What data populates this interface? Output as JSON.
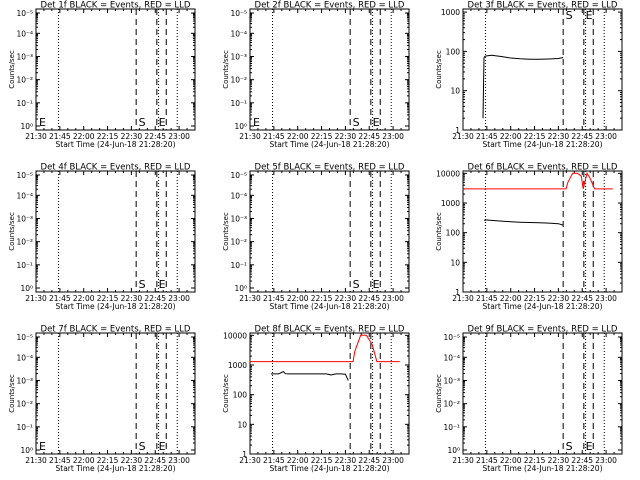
{
  "charts": [
    {
      "type": "line",
      "title": "Det 1f BLACK = Events, RED = LLD",
      "xlabel": "Start Time (24-Jun-18 21:28:20)",
      "ylabel": "Counts/sec",
      "xlim": [
        21.5,
        23.1667
      ],
      "xticks": [
        "21:30",
        "21:45",
        "22:00",
        "22:15",
        "22:30",
        "22:45",
        "23:00"
      ],
      "yscale": "log",
      "ylim": [
        1,
        10000
      ],
      "yticks": [
        "10⁰",
        "10⁻¹",
        "10⁻²",
        "10⁻³",
        "10⁻⁴",
        "10⁻⁵"
      ],
      "dotted_lines": [
        21.7361,
        22.7847,
        22.9806
      ],
      "dashed_lines": [
        22.55,
        22.7667,
        22.8653
      ],
      "markers": [
        {
          "label": "E",
          "x": 21.515
        },
        {
          "label": "S",
          "x": 22.56
        },
        {
          "label": "E",
          "x": 22.77
        }
      ],
      "series": [],
      "grid": false
    },
    {
      "type": "line",
      "title": "Det 2f BLACK = Events, RED = LLD",
      "xlabel": "Start Time (24-Jun-18 21:28:20)",
      "ylabel": "Counts/sec",
      "xlim": [
        21.5,
        23.1667
      ],
      "xticks": [
        "21:30",
        "21:45",
        "22:00",
        "22:15",
        "22:30",
        "22:45",
        "23:00"
      ],
      "yscale": "log",
      "ylim": [
        1,
        10000
      ],
      "yticks": [
        "10⁰",
        "10⁻¹",
        "10⁻²",
        "10⁻³",
        "10⁻⁴",
        "10⁻⁵"
      ],
      "dotted_lines": [
        21.7361,
        22.7847,
        22.9806
      ],
      "dashed_lines": [
        22.55,
        22.7667,
        22.8653
      ],
      "markers": [
        {
          "label": "E",
          "x": 21.515
        },
        {
          "label": "S",
          "x": 22.56
        },
        {
          "label": "E",
          "x": 22.77
        }
      ],
      "series": [],
      "grid": false
    },
    {
      "type": "line",
      "title": "Det 3f BLACK = Events, RED = LLD",
      "xlabel": "Start Time (24-Jun-18 21:28:20)",
      "ylabel": "Counts/sec",
      "xlim": [
        21.5,
        23.1667
      ],
      "xticks": [
        "21:30",
        "21:45",
        "22:00",
        "22:15",
        "22:30",
        "22:45",
        "23:00"
      ],
      "yscale": "log",
      "ylim": [
        1,
        1200
      ],
      "yticks": [
        "1",
        "10",
        "100",
        "1000"
      ],
      "dotted_lines": [
        21.7361,
        22.7847,
        22.9806
      ],
      "dashed_lines": [
        22.55,
        22.7667,
        22.8653
      ],
      "markers": [
        {
          "label": "S",
          "x": 22.56
        },
        {
          "label": "E",
          "x": 22.77
        }
      ],
      "series": [
        {
          "color": "#000000",
          "x": [
            21.71,
            21.72,
            21.73,
            21.75,
            21.8,
            21.9,
            22.0,
            22.1,
            22.2,
            22.3,
            22.4,
            22.5,
            22.55
          ],
          "y": [
            2,
            70,
            75,
            77,
            80,
            74,
            68,
            65,
            63,
            63,
            64,
            66,
            70
          ]
        }
      ],
      "grid": false
    },
    {
      "type": "line",
      "title": "Det 4f BLACK = Events, RED = LLD",
      "xlabel": "Start Time (24-Jun-18 21:28:20)",
      "ylabel": "Counts/sec",
      "xlim": [
        21.5,
        23.1667
      ],
      "xticks": [
        "21:30",
        "21:45",
        "22:00",
        "22:15",
        "22:30",
        "22:45",
        "23:00"
      ],
      "yscale": "log",
      "ylim": [
        1,
        10000
      ],
      "yticks": [
        "10⁰",
        "10⁻¹",
        "10⁻²",
        "10⁻³",
        "10⁻⁴",
        "10⁻⁵"
      ],
      "dotted_lines": [
        21.7361,
        22.7847,
        22.9806
      ],
      "dashed_lines": [
        22.55,
        22.7667,
        22.8653
      ],
      "markers": [
        {
          "label": "S",
          "x": 22.56
        },
        {
          "label": "E",
          "x": 22.77
        }
      ],
      "series": [],
      "grid": false
    },
    {
      "type": "line",
      "title": "Det 5f BLACK = Events, RED = LLD",
      "xlabel": "Start Time (24-Jun-18 21:28:20)",
      "ylabel": "Counts/sec",
      "xlim": [
        21.5,
        23.1667
      ],
      "xticks": [
        "21:30",
        "21:45",
        "22:00",
        "22:15",
        "22:30",
        "22:45",
        "23:00"
      ],
      "yscale": "log",
      "ylim": [
        1,
        10000
      ],
      "yticks": [
        "10⁰",
        "10⁻¹",
        "10⁻²",
        "10⁻³",
        "10⁻⁴",
        "10⁻⁵"
      ],
      "dotted_lines": [
        21.7361,
        22.7847,
        22.9806
      ],
      "dashed_lines": [
        22.55,
        22.7667,
        22.8653
      ],
      "markers": [
        {
          "label": "S",
          "x": 22.56
        },
        {
          "label": "E",
          "x": 22.77
        }
      ],
      "series": [],
      "grid": false
    },
    {
      "type": "line",
      "title": "Det 6f BLACK = Events, RED = LLD",
      "xlabel": "Start Time (24-Jun-18 21:28:20)",
      "ylabel": "Counts/sec",
      "xlim": [
        21.5,
        23.1667
      ],
      "xticks": [
        "21:30",
        "21:45",
        "22:00",
        "22:15",
        "22:30",
        "22:45",
        "23:00"
      ],
      "yscale": "log",
      "ylim": [
        1,
        12000
      ],
      "yticks": [
        "1",
        "10",
        "100",
        "1000",
        "10000"
      ],
      "dotted_lines": [
        21.7361,
        22.7847,
        22.9806
      ],
      "dashed_lines": [
        22.55,
        22.7667,
        22.8653
      ],
      "markers": [],
      "series": [
        {
          "color": "#ff0000",
          "x": [
            21.5,
            22.58,
            22.6,
            22.65,
            22.7,
            22.74,
            22.76,
            22.8,
            22.83,
            22.88,
            22.95,
            23.07
          ],
          "y": [
            3000,
            3000,
            5000,
            10000,
            10000,
            8000,
            3000,
            10000,
            7000,
            3000,
            3000,
            3000
          ]
        },
        {
          "color": "#000000",
          "x": [
            21.72,
            21.74,
            21.8,
            21.9,
            22.0,
            22.1,
            22.2,
            22.3,
            22.4,
            22.5,
            22.55
          ],
          "y": [
            260,
            270,
            260,
            245,
            235,
            225,
            220,
            215,
            210,
            200,
            180
          ]
        }
      ],
      "grid": false
    },
    {
      "type": "line",
      "title": "Det 7f BLACK = Events, RED = LLD",
      "xlabel": "Start Time (24-Jun-18 21:28:20)",
      "ylabel": "Counts/sec",
      "xlim": [
        21.5,
        23.1667
      ],
      "xticks": [
        "21:30",
        "21:45",
        "22:00",
        "22:15",
        "22:30",
        "22:45",
        "23:00"
      ],
      "yscale": "log",
      "ylim": [
        1,
        10000
      ],
      "yticks": [
        "10⁰",
        "10⁻¹",
        "10⁻²",
        "10⁻³",
        "10⁻⁴",
        "10⁻⁵"
      ],
      "dotted_lines": [
        21.7361,
        22.7847,
        22.9806
      ],
      "dashed_lines": [
        22.55,
        22.7667,
        22.8653
      ],
      "markers": [
        {
          "label": "E",
          "x": 21.515
        },
        {
          "label": "S",
          "x": 22.56
        },
        {
          "label": "E",
          "x": 22.77
        }
      ],
      "series": [],
      "grid": false
    },
    {
      "type": "line",
      "title": "Det 8f BLACK = Events, RED = LLD",
      "xlabel": "Start Time (24-Jun-18 21:28:20)",
      "ylabel": "Counts/sec",
      "xlim": [
        21.5,
        23.1667
      ],
      "xticks": [
        "21:30",
        "21:45",
        "22:00",
        "22:15",
        "22:30",
        "22:45",
        "23:00"
      ],
      "yscale": "log",
      "ylim": [
        1,
        12000
      ],
      "yticks": [
        "1",
        "10",
        "100",
        "1000",
        "10000"
      ],
      "dotted_lines": [
        21.7361,
        22.7847,
        22.9806
      ],
      "dashed_lines": [
        22.55,
        22.7667,
        22.8653
      ],
      "markers": [],
      "series": [
        {
          "color": "#ff0000",
          "x": [
            21.5,
            22.58,
            22.6,
            22.66,
            22.72,
            22.78,
            22.83,
            22.88,
            23.07
          ],
          "y": [
            1300,
            1300,
            3000,
            10000,
            10000,
            5000,
            1300,
            1300,
            1300
          ]
        },
        {
          "color": "#000000",
          "x": [
            21.72,
            21.8,
            21.83,
            21.85,
            21.87,
            21.9,
            22.0,
            22.1,
            22.2,
            22.3,
            22.35,
            22.4,
            22.45,
            22.5,
            22.53
          ],
          "y": [
            500,
            500,
            560,
            600,
            510,
            500,
            500,
            500,
            500,
            500,
            460,
            500,
            500,
            490,
            300
          ]
        }
      ],
      "grid": false
    },
    {
      "type": "line",
      "title": "Det 9f BLACK = Events, RED = LLD",
      "xlabel": "Start Time (24-Jun-18 21:28:20)",
      "ylabel": "Counts/sec",
      "xlim": [
        21.5,
        23.1667
      ],
      "xticks": [
        "21:30",
        "21:45",
        "22:00",
        "22:15",
        "22:30",
        "22:45",
        "23:00"
      ],
      "yscale": "log",
      "ylim": [
        1,
        10000
      ],
      "yticks": [
        "10⁰",
        "10⁻¹",
        "10⁻²",
        "10⁻³",
        "10⁻⁴",
        "10⁻⁵"
      ],
      "dotted_lines": [
        21.7361,
        22.7847,
        22.9806
      ],
      "dashed_lines": [
        22.55,
        22.7667,
        22.8653
      ],
      "markers": [
        {
          "label": "S",
          "x": 22.56
        },
        {
          "label": "E",
          "x": 22.77
        }
      ],
      "series": [],
      "grid": false
    }
  ]
}
